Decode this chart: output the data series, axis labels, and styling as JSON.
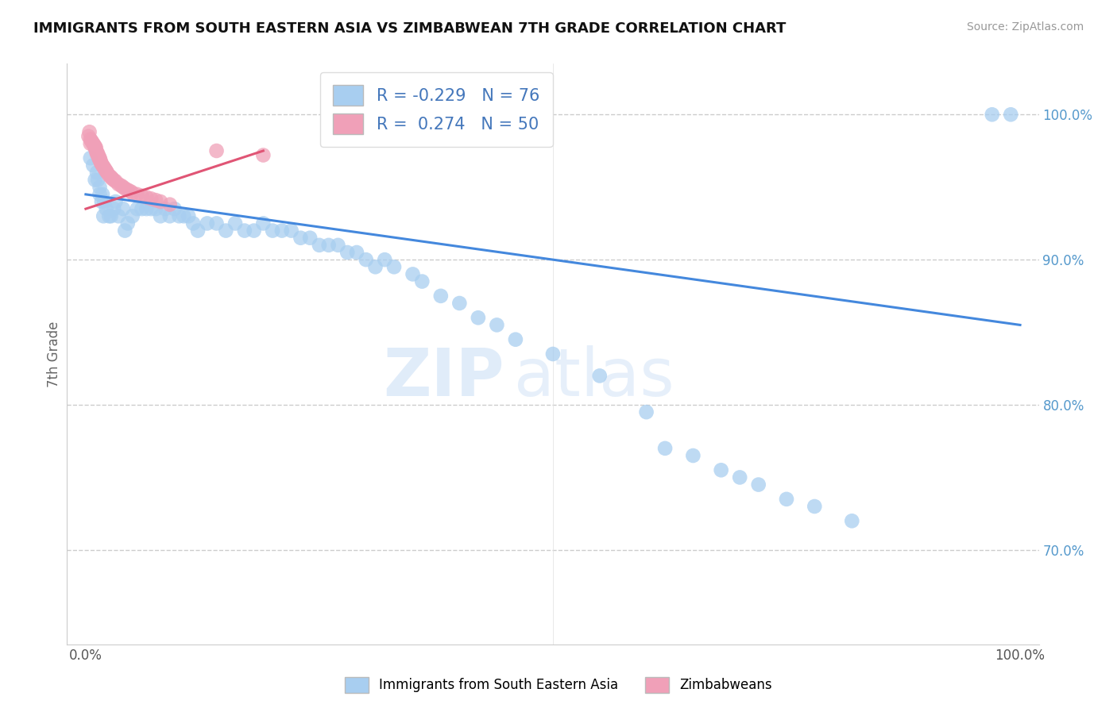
{
  "title": "IMMIGRANTS FROM SOUTH EASTERN ASIA VS ZIMBABWEAN 7TH GRADE CORRELATION CHART",
  "source_text": "Source: ZipAtlas.com",
  "ylabel": "7th Grade",
  "y_tick_positions": [
    1.0,
    0.9,
    0.8,
    0.7
  ],
  "x_lim": [
    -0.02,
    1.02
  ],
  "y_lim": [
    0.635,
    1.035
  ],
  "legend_R1": "-0.229",
  "legend_N1": "76",
  "legend_R2": "0.274",
  "legend_N2": "50",
  "color_blue": "#a8cef0",
  "color_pink": "#f0a0b8",
  "color_line_blue": "#4488dd",
  "color_line_pink": "#e05575",
  "watermark_zip": "ZIP",
  "watermark_atlas": "atlas",
  "title_fontsize": 13,
  "source_fontsize": 10,
  "blue_scatter_x": [
    0.005,
    0.008,
    0.01,
    0.012,
    0.013,
    0.015,
    0.015,
    0.017,
    0.018,
    0.019,
    0.02,
    0.022,
    0.025,
    0.027,
    0.03,
    0.032,
    0.035,
    0.04,
    0.042,
    0.045,
    0.05,
    0.055,
    0.06,
    0.065,
    0.07,
    0.075,
    0.08,
    0.085,
    0.09,
    0.095,
    0.1,
    0.105,
    0.11,
    0.115,
    0.12,
    0.13,
    0.14,
    0.15,
    0.16,
    0.17,
    0.18,
    0.19,
    0.2,
    0.21,
    0.22,
    0.23,
    0.24,
    0.25,
    0.26,
    0.27,
    0.28,
    0.29,
    0.3,
    0.31,
    0.32,
    0.33,
    0.35,
    0.36,
    0.38,
    0.4,
    0.42,
    0.44,
    0.46,
    0.5,
    0.55,
    0.6,
    0.62,
    0.65,
    0.68,
    0.7,
    0.72,
    0.75,
    0.78,
    0.82,
    0.97,
    0.99
  ],
  "blue_scatter_y": [
    0.97,
    0.965,
    0.955,
    0.96,
    0.955,
    0.95,
    0.945,
    0.94,
    0.945,
    0.93,
    0.94,
    0.935,
    0.93,
    0.93,
    0.935,
    0.94,
    0.93,
    0.935,
    0.92,
    0.925,
    0.93,
    0.935,
    0.935,
    0.935,
    0.935,
    0.935,
    0.93,
    0.935,
    0.93,
    0.935,
    0.93,
    0.93,
    0.93,
    0.925,
    0.92,
    0.925,
    0.925,
    0.92,
    0.925,
    0.92,
    0.92,
    0.925,
    0.92,
    0.92,
    0.92,
    0.915,
    0.915,
    0.91,
    0.91,
    0.91,
    0.905,
    0.905,
    0.9,
    0.895,
    0.9,
    0.895,
    0.89,
    0.885,
    0.875,
    0.87,
    0.86,
    0.855,
    0.845,
    0.835,
    0.82,
    0.795,
    0.77,
    0.765,
    0.755,
    0.75,
    0.745,
    0.735,
    0.73,
    0.72,
    1.0,
    1.0
  ],
  "pink_scatter_x": [
    0.003,
    0.004,
    0.005,
    0.005,
    0.006,
    0.007,
    0.008,
    0.009,
    0.01,
    0.01,
    0.011,
    0.011,
    0.012,
    0.012,
    0.013,
    0.013,
    0.014,
    0.014,
    0.015,
    0.015,
    0.016,
    0.016,
    0.017,
    0.018,
    0.019,
    0.02,
    0.021,
    0.022,
    0.023,
    0.025,
    0.027,
    0.028,
    0.03,
    0.032,
    0.035,
    0.038,
    0.04,
    0.042,
    0.045,
    0.048,
    0.05,
    0.055,
    0.06,
    0.065,
    0.07,
    0.075,
    0.08,
    0.09,
    0.14,
    0.19
  ],
  "pink_scatter_y": [
    0.985,
    0.988,
    0.983,
    0.98,
    0.982,
    0.981,
    0.98,
    0.979,
    0.978,
    0.977,
    0.977,
    0.975,
    0.974,
    0.973,
    0.973,
    0.972,
    0.971,
    0.97,
    0.97,
    0.969,
    0.968,
    0.967,
    0.966,
    0.965,
    0.964,
    0.963,
    0.962,
    0.961,
    0.96,
    0.958,
    0.957,
    0.956,
    0.955,
    0.954,
    0.952,
    0.951,
    0.95,
    0.949,
    0.948,
    0.947,
    0.946,
    0.945,
    0.944,
    0.943,
    0.942,
    0.941,
    0.94,
    0.938,
    0.975,
    0.972
  ],
  "blue_line_x": [
    0.0,
    1.0
  ],
  "blue_line_y": [
    0.945,
    0.855
  ],
  "pink_line_x": [
    0.0,
    0.19
  ],
  "pink_line_y": [
    0.935,
    0.975
  ]
}
